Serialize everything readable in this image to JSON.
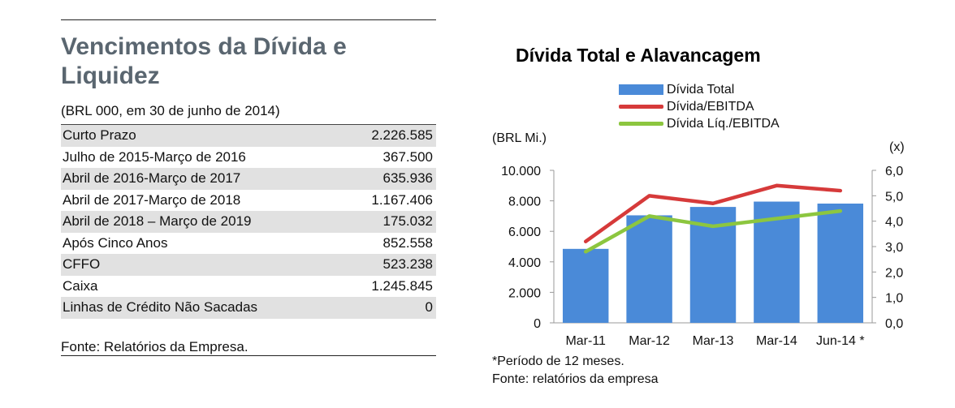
{
  "table_panel": {
    "title": "Vencimentos da Dívida e Liquidez",
    "subtitle": "(BRL 000, em 30 de junho de 2014)",
    "rows": [
      {
        "label": "Curto Prazo",
        "value": "2.226.585"
      },
      {
        "label": "Julho de 2015-Março de 2016",
        "value": "367.500"
      },
      {
        "label": "Abril de 2016-Março de 2017",
        "value": "635.936"
      },
      {
        "label": "Abril de 2017-Março de 2018",
        "value": "1.167.406"
      },
      {
        "label": "Abril de 2018 – Março de 2019",
        "value": "175.032"
      },
      {
        "label": "Após Cinco Anos",
        "value": "852.558"
      },
      {
        "label": "CFFO",
        "value": "523.238"
      },
      {
        "label": "Caixa",
        "value": "1.245.845"
      },
      {
        "label": "Linhas de Crédito Não Sacadas",
        "value": "0"
      }
    ],
    "source": "Fonte: Relatórios da Empresa."
  },
  "chart_panel": {
    "note": "*Período de 12 meses.",
    "source": "Fonte: relatórios da empresa"
  },
  "chart_data": {
    "type": "bar",
    "title": "Dívida Total e Alavancagem",
    "categories": [
      "Mar-11",
      "Mar-12",
      "Mar-13",
      "Mar-14",
      "Jun-14 *"
    ],
    "ylabel": "(BRL Mi.)",
    "y2label": "(x)",
    "ylim": [
      0,
      10000
    ],
    "y2lim": [
      0,
      6
    ],
    "yticks": [
      "0",
      "2.000",
      "4.000",
      "6.000",
      "8.000",
      "10.000"
    ],
    "y2ticks": [
      "0,0",
      "1,0",
      "2,0",
      "3,0",
      "4,0",
      "5,0",
      "6,0"
    ],
    "legend_position": "top",
    "grid": false,
    "series": [
      {
        "name": "Dívida Total",
        "type": "bar",
        "axis": "left",
        "color": "#4a8ad8",
        "values": [
          4850,
          7050,
          7600,
          7950,
          7820
        ]
      },
      {
        "name": "Dívida/EBITDA",
        "type": "line",
        "axis": "right",
        "color": "#d63a3a",
        "values": [
          3.2,
          5.0,
          4.7,
          5.4,
          5.2
        ]
      },
      {
        "name": "Dívida Líq./EBITDA",
        "type": "line",
        "axis": "right",
        "color": "#8cc63f",
        "values": [
          2.8,
          4.2,
          3.8,
          4.1,
          4.4
        ]
      }
    ]
  }
}
